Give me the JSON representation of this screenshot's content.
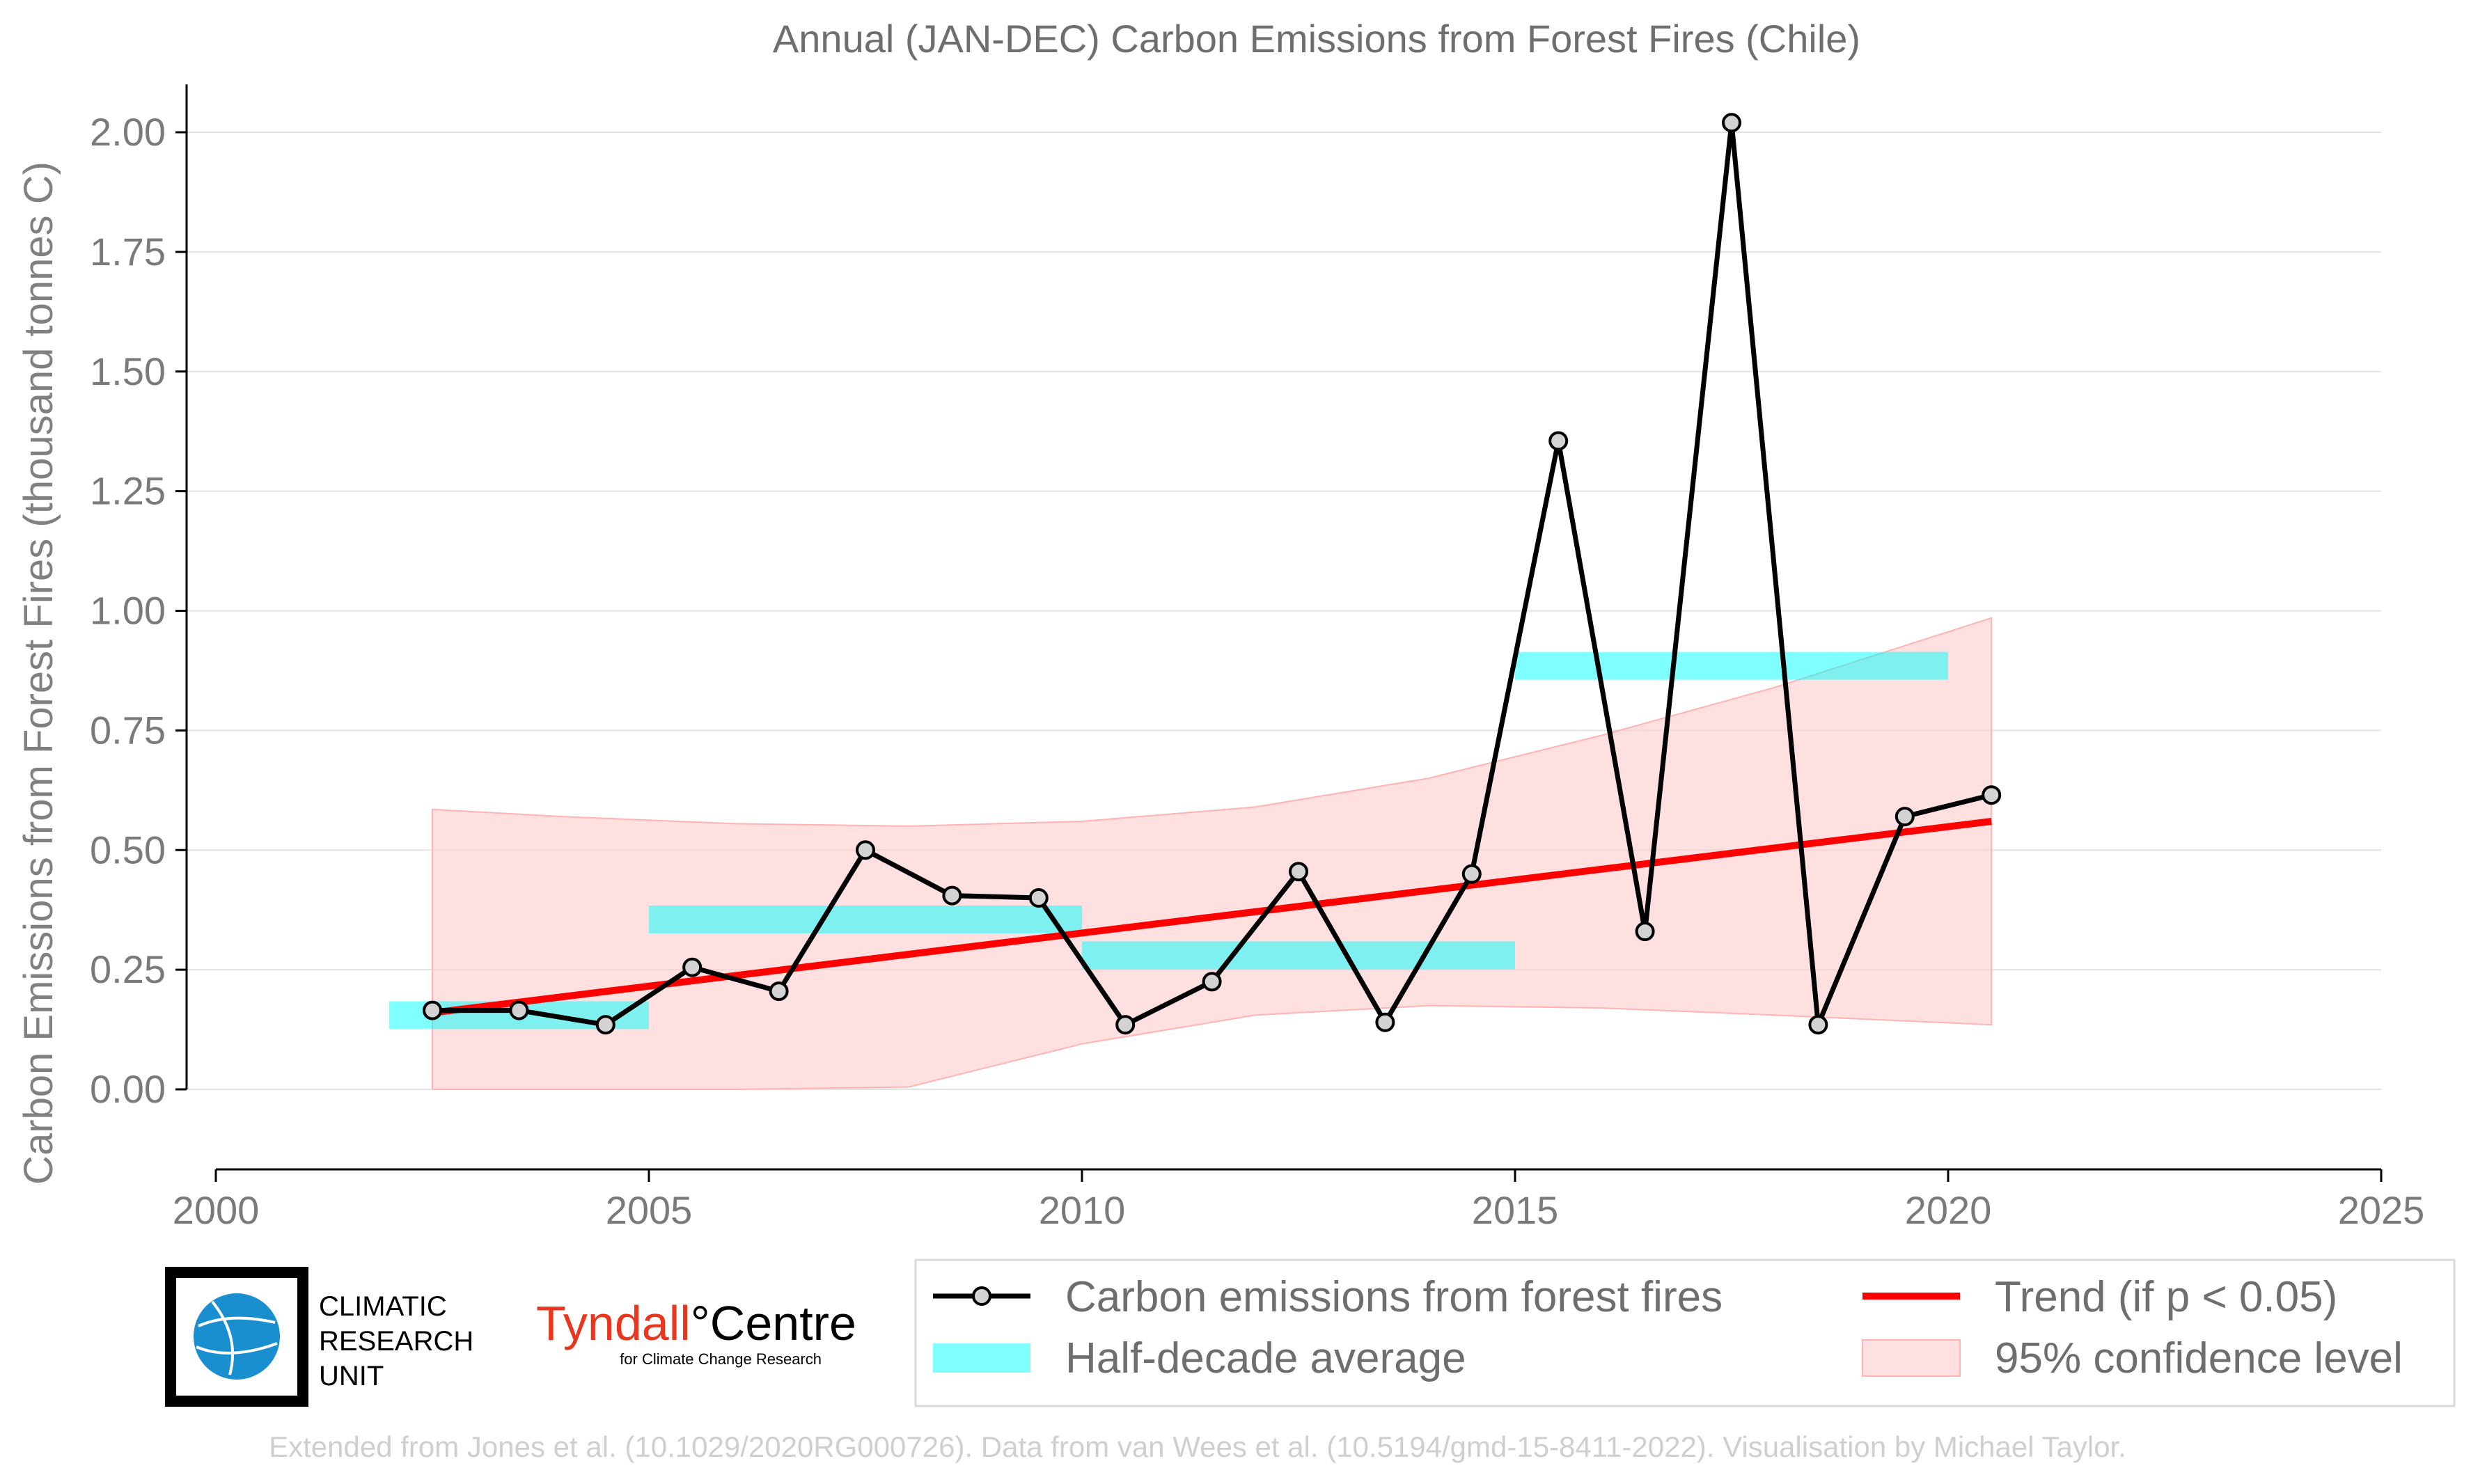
{
  "chart_data": {
    "type": "line",
    "title": "Annual (JAN-DEC) Carbon Emissions from Forest Fires (Chile)",
    "ylabel": "Carbon Emissions from Forest Fires (thousand tonnes C)",
    "xlabel": "",
    "xlim": [
      2000,
      2025
    ],
    "ylim": [
      -0.16,
      2.1
    ],
    "x_ticks": [
      2000,
      2005,
      2010,
      2015,
      2020,
      2025
    ],
    "y_ticks": [
      0.0,
      0.25,
      0.5,
      0.75,
      1.0,
      1.25,
      1.5,
      1.75,
      2.0
    ],
    "y_tick_labels": [
      "0.00",
      "0.25",
      "0.50",
      "0.75",
      "1.00",
      "1.25",
      "1.50",
      "1.75",
      "2.00"
    ],
    "grid": "horizontal",
    "series": [
      {
        "name": "Carbon emissions from forest fires",
        "color": "#000000",
        "x": [
          2002.5,
          2003.5,
          2004.5,
          2005.5,
          2006.5,
          2007.5,
          2008.5,
          2009.5,
          2010.5,
          2011.5,
          2012.5,
          2013.5,
          2014.5,
          2015.5,
          2016.5,
          2017.5,
          2018.5,
          2019.5,
          2020.5
        ],
        "values": [
          0.165,
          0.165,
          0.135,
          0.255,
          0.205,
          0.5,
          0.405,
          0.4,
          0.135,
          0.225,
          0.455,
          0.14,
          0.45,
          1.355,
          0.33,
          2.02,
          0.135,
          0.57,
          0.615
        ]
      }
    ],
    "half_decade_average": {
      "name": "Half-decade average",
      "color": "#00ffff",
      "segments": [
        {
          "x0": 2002,
          "x1": 2005,
          "value": 0.155
        },
        {
          "x0": 2005,
          "x1": 2010,
          "value": 0.355
        },
        {
          "x0": 2010,
          "x1": 2015,
          "value": 0.28
        },
        {
          "x0": 2015,
          "x1": 2020,
          "value": 0.885
        }
      ]
    },
    "trend": {
      "name": "Trend (if p < 0.05)",
      "color": "#ff0000",
      "x": [
        2002.5,
        2020.5
      ],
      "values": [
        0.16,
        0.56
      ]
    },
    "confidence_band": {
      "name": "95% confidence level",
      "color": "#ffcccc",
      "x": [
        2002.5,
        2004,
        2006,
        2008,
        2010,
        2012,
        2014,
        2016,
        2018,
        2020.5
      ],
      "upper": [
        0.585,
        0.57,
        0.555,
        0.55,
        0.56,
        0.59,
        0.65,
        0.74,
        0.84,
        0.985
      ],
      "lower": [
        0.0,
        0.0,
        0.0,
        0.005,
        0.095,
        0.155,
        0.175,
        0.17,
        0.155,
        0.135
      ]
    },
    "legend_position": "bottom-right"
  },
  "logos": {
    "cru": [
      "CLIMATIC",
      "RESEARCH",
      "UNIT"
    ],
    "tyndall_main_a": "Tyndall",
    "tyndall_main_b": "°Centre",
    "tyndall_sub": "for Climate Change Research"
  },
  "footer": "Extended from Jones et al. (10.1029/2020RG000726). Data from van Wees et al. (10.5194/gmd-15-8411-2022). Visualisation by Michael Taylor."
}
